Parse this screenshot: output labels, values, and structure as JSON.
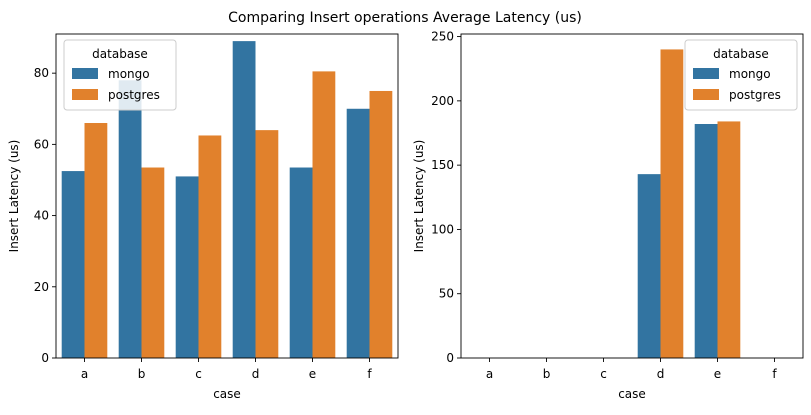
{
  "figure": {
    "suptitle": "Comparing Insert operations Average Latency (us)"
  },
  "colors": {
    "mongo": "#3274a1",
    "postgres": "#e1812c",
    "axis": "#000000"
  },
  "chart_data": [
    {
      "type": "bar",
      "title": "",
      "xlabel": "case",
      "ylabel": "Insert Latency (us)",
      "categories": [
        "a",
        "b",
        "c",
        "d",
        "e",
        "f"
      ],
      "ylim": [
        0,
        91
      ],
      "yticks": [
        0,
        20,
        40,
        60,
        80
      ],
      "legend": {
        "title": "database",
        "placement": "top-left"
      },
      "series": [
        {
          "name": "mongo",
          "values": [
            52.5,
            78,
            51,
            89,
            53.5,
            70
          ]
        },
        {
          "name": "postgres",
          "values": [
            66,
            53.5,
            62.5,
            64,
            80.5,
            75
          ]
        }
      ]
    },
    {
      "type": "bar",
      "title": "",
      "xlabel": "case",
      "ylabel": "Insert Latency (us)",
      "categories": [
        "a",
        "b",
        "c",
        "d",
        "e",
        "f"
      ],
      "ylim": [
        0,
        252
      ],
      "yticks": [
        0,
        50,
        100,
        150,
        200,
        250
      ],
      "legend": {
        "title": "database",
        "placement": "top-right"
      },
      "series": [
        {
          "name": "mongo",
          "values": [
            0,
            0,
            0,
            143,
            182,
            0
          ]
        },
        {
          "name": "postgres",
          "values": [
            0,
            0,
            0,
            240,
            184,
            0
          ]
        }
      ]
    }
  ]
}
